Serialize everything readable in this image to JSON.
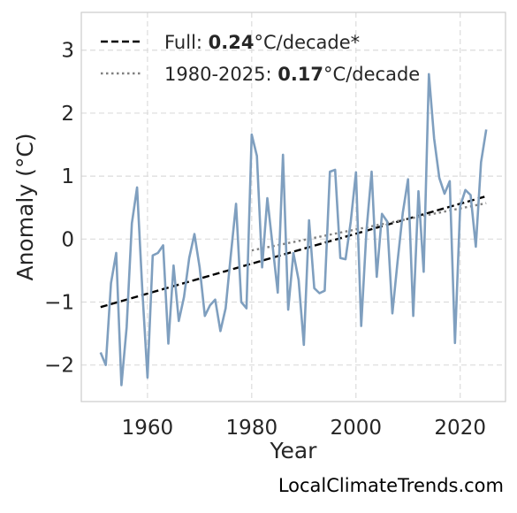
{
  "chart_data": {
    "type": "line",
    "xlabel": "Year",
    "ylabel": "Anomaly (°C)",
    "xlim": [
      1947.3,
      2028.7
    ],
    "ylim": [
      -2.58,
      3.6
    ],
    "xticks": [
      1960,
      1980,
      2000,
      2020
    ],
    "xtick_labels": [
      "1960",
      "1980",
      "2000",
      "2020"
    ],
    "yticks": [
      -2,
      -1,
      0,
      1,
      2,
      3
    ],
    "ytick_labels": [
      "−2",
      "−1",
      "0",
      "1",
      "2",
      "3"
    ],
    "grid": true,
    "series": [
      {
        "color": "#7f9fbf",
        "x": [
          1951,
          1952,
          1953,
          1954,
          1955,
          1956,
          1957,
          1958,
          1959,
          1960,
          1961,
          1962,
          1963,
          1964,
          1965,
          1966,
          1967,
          1968,
          1969,
          1970,
          1971,
          1972,
          1973,
          1974,
          1975,
          1976,
          1977,
          1978,
          1979,
          1980,
          1981,
          1982,
          1983,
          1984,
          1985,
          1986,
          1987,
          1988,
          1989,
          1990,
          1991,
          1992,
          1993,
          1994,
          1995,
          1996,
          1997,
          1998,
          1999,
          2000,
          2001,
          2002,
          2003,
          2004,
          2005,
          2006,
          2007,
          2008,
          2009,
          2010,
          2011,
          2012,
          2013,
          2014,
          2015,
          2016,
          2017,
          2018,
          2019,
          2020,
          2021,
          2022,
          2023,
          2024,
          2025
        ],
        "y": [
          -1.8,
          -2.0,
          -0.7,
          -0.22,
          -2.32,
          -1.4,
          0.25,
          0.82,
          -0.8,
          -2.2,
          -0.26,
          -0.22,
          -0.1,
          -1.66,
          -0.42,
          -1.3,
          -0.92,
          -0.3,
          0.08,
          -0.45,
          -1.22,
          -1.05,
          -0.96,
          -1.46,
          -1.1,
          -0.25,
          0.56,
          -1.0,
          -1.1,
          1.66,
          1.32,
          -0.45,
          0.65,
          -0.1,
          -0.85,
          1.34,
          -1.12,
          -0.22,
          -0.65,
          -1.68,
          0.3,
          -0.78,
          -0.86,
          -0.82,
          1.07,
          1.1,
          -0.3,
          -0.32,
          0.28,
          1.06,
          -1.38,
          0.12,
          1.07,
          -0.6,
          0.4,
          0.28,
          -1.18,
          -0.35,
          0.42,
          0.95,
          -1.22,
          0.76,
          -0.52,
          2.62,
          1.6,
          0.97,
          0.72,
          0.92,
          -1.65,
          0.52,
          0.78,
          0.7,
          -0.12,
          1.22,
          1.74
        ]
      }
    ],
    "trends": [
      {
        "key": "full",
        "label_prefix": "Full: ",
        "rate": "0.24",
        "label_suffix": "°C/decade*",
        "style": "dashed",
        "color": "#000000",
        "x": [
          1951,
          2025
        ],
        "y": [
          -1.08,
          0.68
        ]
      },
      {
        "key": "recent",
        "label_prefix": "1980-2025: ",
        "rate": "0.17",
        "label_suffix": "°C/decade",
        "style": "dotted",
        "color": "#808080",
        "x": [
          1980,
          2025
        ],
        "y": [
          -0.18,
          0.57
        ]
      }
    ],
    "legend_position": "top-left"
  },
  "credit": "LocalClimateTrends.com"
}
